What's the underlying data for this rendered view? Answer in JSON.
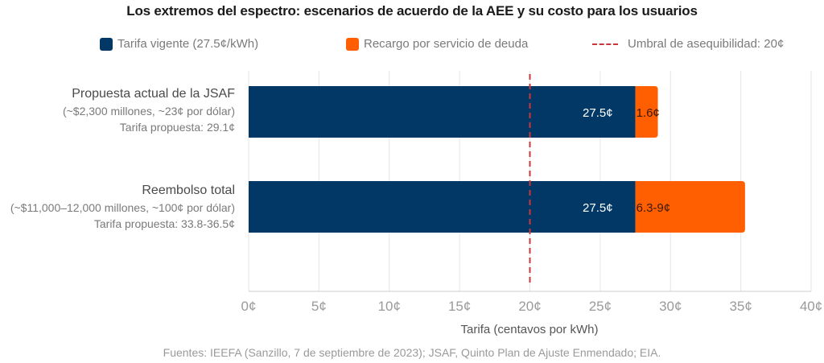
{
  "chart_data": {
    "type": "bar",
    "orientation": "horizontal",
    "stacked": true,
    "title": "Los extremos del espectro: escenarios de acuerdo de la AEE y su costo para los usuarios",
    "xlabel": "Tarifa (centavos por kWh)",
    "ylabel": "",
    "xlim": [
      0,
      40
    ],
    "x_ticks": [
      0,
      5,
      10,
      15,
      20,
      25,
      30,
      35,
      40
    ],
    "x_tick_labels": [
      "0¢",
      "5¢",
      "10¢",
      "15¢",
      "20¢",
      "25¢",
      "30¢",
      "35¢",
      "40¢"
    ],
    "grid": true,
    "legend_position": "top",
    "categories": [
      {
        "name": "Propuesta actual de la JSAF",
        "detail": "(~$2,300 millones, ~23¢ por dólar)",
        "proposed_rate": "Tarifa propuesta: 29.1¢"
      },
      {
        "name": "Reembolso total",
        "detail": "(~$11,000–12,000 millones, ~100¢ por dólar)",
        "proposed_rate": "Tarifa propuesta: 33.8-36.5¢"
      }
    ],
    "series": [
      {
        "name": "Tarifa vigente (27.5¢/kWh)",
        "color": "#023866",
        "values": [
          27.5,
          27.5
        ],
        "labels": [
          "27.5¢",
          "27.5¢"
        ],
        "label_color": "#ffffff"
      },
      {
        "name": "Recargo por servicio de deuda",
        "color": "#ff5f00",
        "values": [
          1.6,
          7.8
        ],
        "labels": [
          "1.6¢",
          "6.3-9¢"
        ],
        "label_color": "#3a1a0a"
      }
    ],
    "reference_line": {
      "name": "Umbral de asequibilidad: 20¢",
      "value": 20,
      "color": "#c8383a",
      "style": "dashed"
    },
    "source": "Fuentes: IEEFA (Sanzillo, 7 de septiembre de 2023); JSAF, Quinto Plan de Ajuste Enmendado; EIA."
  },
  "colors": {
    "grid": "#e6e6e6",
    "axis": "#cccccc",
    "tick_text": "#9a9a9a"
  }
}
